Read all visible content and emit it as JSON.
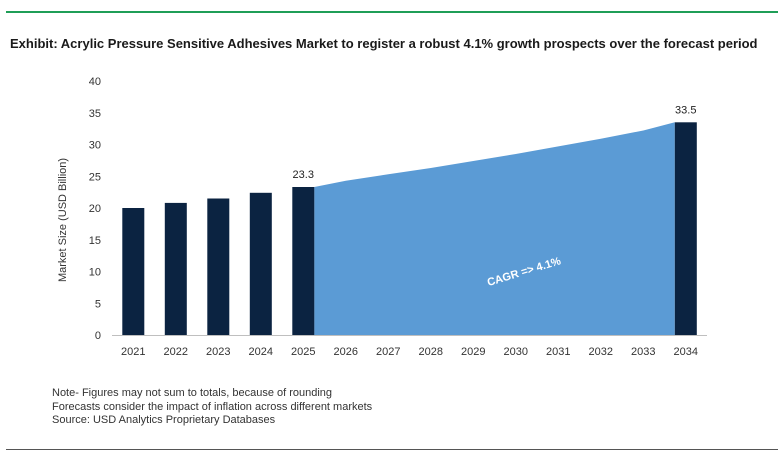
{
  "title": "Exhibit: Acrylic Pressure Sensitive Adhesives Market to register a robust 4.1% growth prospects over the forecast period",
  "chart_data": {
    "type": "bar",
    "title": "Exhibit: Acrylic Pressure Sensitive Adhesives Market to register a robust 4.1% growth prospects over the forecast period",
    "xlabel": "",
    "ylabel": "Market Size (USD Billion)",
    "ylim": [
      0,
      40
    ],
    "yticks": [
      0,
      5,
      10,
      15,
      20,
      25,
      30,
      35,
      40
    ],
    "grid": false,
    "categories": [
      "2021",
      "2022",
      "2023",
      "2024",
      "2025",
      "2026",
      "2027",
      "2028",
      "2029",
      "2030",
      "2031",
      "2032",
      "2033",
      "2034"
    ],
    "series": [
      {
        "values": [
          20.0,
          20.8,
          21.5,
          22.4,
          23.3,
          null,
          null,
          null,
          null,
          null,
          null,
          null,
          null,
          33.5
        ]
      }
    ],
    "forecast_area": {
      "type": "area",
      "x": [
        "2025",
        "2026",
        "2027",
        "2028",
        "2029",
        "2030",
        "2031",
        "2032",
        "2033",
        "2034"
      ],
      "values": [
        23.3,
        24.3,
        25.3,
        26.3,
        27.4,
        28.5,
        29.7,
        30.9,
        32.2,
        33.5
      ]
    },
    "data_labels": [
      {
        "category": "2025",
        "text": "23.3"
      },
      {
        "category": "2034",
        "text": "33.5"
      }
    ],
    "annotation": "CAGR => 4.1%",
    "colors": {
      "bar": "#0b2341",
      "area": "#5b9bd5",
      "axis": "#bfbfbf"
    }
  },
  "notes": [
    "Note- Figures may not sum to totals, because of rounding",
    "Forecasts consider the impact of inflation across different markets",
    "Source: USD Analytics Proprietary Databases"
  ]
}
